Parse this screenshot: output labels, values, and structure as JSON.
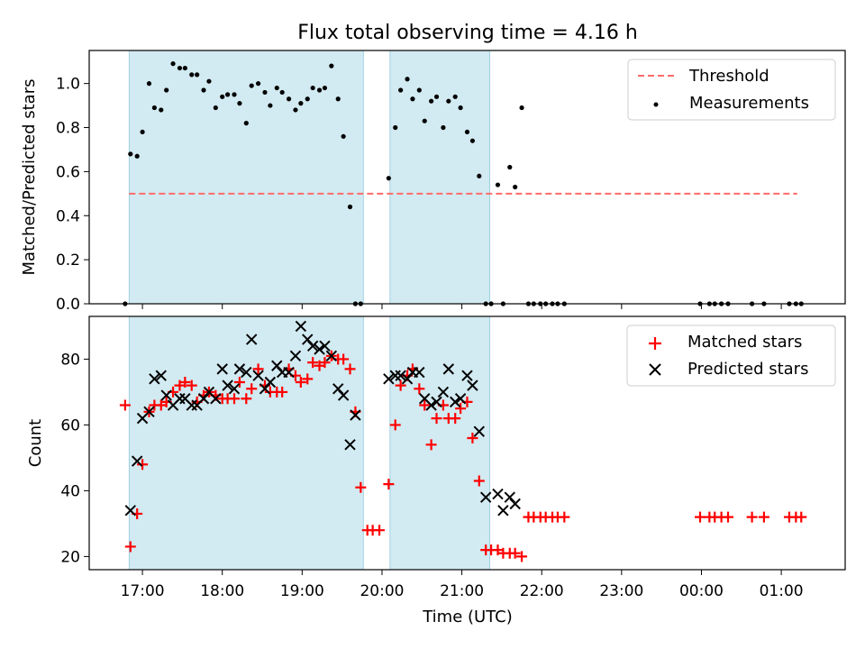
{
  "figure": {
    "title": "Flux total observing time = 4.16 h",
    "xlabel": "Time (UTC)"
  },
  "x_ticks": [
    "17:00",
    "18:00",
    "19:00",
    "20:00",
    "21:00",
    "22:00",
    "23:00",
    "00:00",
    "01:00"
  ],
  "colors": {
    "shade": "#add8e6",
    "threshold": "#ff6b6b",
    "matched": "#ff0000",
    "predicted": "#000000",
    "measurement": "#000000"
  },
  "chart_data": [
    {
      "type": "scatter",
      "ylabel": "Matched/Predicted stars",
      "xlim": [
        "16:20",
        "01:48"
      ],
      "ylim": [
        0,
        1.15
      ],
      "y_ticks": [
        "0.0",
        "0.2",
        "0.4",
        "0.6",
        "0.8",
        "1.0"
      ],
      "legend_position": "top-right",
      "shaded_intervals": [
        [
          "16:50",
          "19:46"
        ],
        [
          "20:06",
          "21:21"
        ]
      ],
      "threshold": {
        "name": "Threshold",
        "value": 0.5,
        "x_range": [
          "16:50",
          "01:12"
        ]
      },
      "series": [
        {
          "name": "Measurements",
          "points": [
            [
              "16:47",
              0.0
            ],
            [
              "16:51",
              0.68
            ],
            [
              "16:56",
              0.67
            ],
            [
              "17:00",
              0.78
            ],
            [
              "17:05",
              1.0
            ],
            [
              "17:09",
              0.89
            ],
            [
              "17:14",
              0.88
            ],
            [
              "17:18",
              0.97
            ],
            [
              "17:23",
              1.09
            ],
            [
              "17:28",
              1.07
            ],
            [
              "17:32",
              1.07
            ],
            [
              "17:37",
              1.04
            ],
            [
              "17:41",
              1.04
            ],
            [
              "17:46",
              0.97
            ],
            [
              "17:50",
              1.01
            ],
            [
              "17:55",
              0.89
            ],
            [
              "18:00",
              0.94
            ],
            [
              "18:04",
              0.95
            ],
            [
              "18:09",
              0.95
            ],
            [
              "18:13",
              0.91
            ],
            [
              "18:18",
              0.82
            ],
            [
              "18:22",
              0.99
            ],
            [
              "18:27",
              1.0
            ],
            [
              "18:32",
              0.96
            ],
            [
              "18:36",
              0.9
            ],
            [
              "18:41",
              0.98
            ],
            [
              "18:45",
              0.96
            ],
            [
              "18:50",
              0.93
            ],
            [
              "18:55",
              0.88
            ],
            [
              "18:59",
              0.91
            ],
            [
              "19:04",
              0.93
            ],
            [
              "19:08",
              0.98
            ],
            [
              "19:13",
              0.97
            ],
            [
              "19:17",
              0.98
            ],
            [
              "19:22",
              1.08
            ],
            [
              "19:27",
              0.93
            ],
            [
              "19:31",
              0.76
            ],
            [
              "19:36",
              0.44
            ],
            [
              "19:40",
              0.0
            ],
            [
              "19:44",
              0.0
            ],
            [
              "20:05",
              0.57
            ],
            [
              "20:10",
              0.8
            ],
            [
              "20:14",
              0.97
            ],
            [
              "20:19",
              1.02
            ],
            [
              "20:23",
              0.93
            ],
            [
              "20:28",
              0.97
            ],
            [
              "20:32",
              0.83
            ],
            [
              "20:37",
              0.92
            ],
            [
              "20:41",
              0.94
            ],
            [
              "20:46",
              0.8
            ],
            [
              "20:50",
              0.92
            ],
            [
              "20:55",
              0.94
            ],
            [
              "20:59",
              0.89
            ],
            [
              "21:04",
              0.78
            ],
            [
              "21:08",
              0.74
            ],
            [
              "21:13",
              0.58
            ],
            [
              "21:18",
              0.0
            ],
            [
              "21:22",
              0.0
            ],
            [
              "21:27",
              0.54
            ],
            [
              "21:31",
              0.0
            ],
            [
              "21:36",
              0.62
            ],
            [
              "21:40",
              0.53
            ],
            [
              "21:45",
              0.89
            ],
            [
              "21:50",
              0.0
            ],
            [
              "21:54",
              0.0
            ],
            [
              "21:59",
              0.0
            ],
            [
              "22:03",
              0.0
            ],
            [
              "22:08",
              0.0
            ],
            [
              "22:12",
              0.0
            ],
            [
              "22:17",
              0.0
            ],
            [
              "23:59",
              0.0
            ],
            [
              "00:06",
              0.0
            ],
            [
              "00:10",
              0.0
            ],
            [
              "00:15",
              0.0
            ],
            [
              "00:20",
              0.0
            ],
            [
              "00:38",
              0.0
            ],
            [
              "00:47",
              0.0
            ],
            [
              "01:06",
              0.0
            ],
            [
              "01:11",
              0.0
            ],
            [
              "01:15",
              0.0
            ]
          ]
        }
      ]
    },
    {
      "type": "scatter",
      "ylabel": "Count",
      "xlim": [
        "16:20",
        "01:48"
      ],
      "ylim": [
        16,
        93
      ],
      "y_ticks": [
        "20",
        "40",
        "60",
        "80"
      ],
      "legend_position": "top-right",
      "shaded_intervals": [
        [
          "16:50",
          "19:46"
        ],
        [
          "20:06",
          "21:21"
        ]
      ],
      "series": [
        {
          "name": "Matched stars",
          "marker": "+",
          "points": [
            [
              "16:47",
              66
            ],
            [
              "16:51",
              23
            ],
            [
              "16:56",
              33
            ],
            [
              "17:00",
              48
            ],
            [
              "17:05",
              64
            ],
            [
              "17:09",
              66
            ],
            [
              "17:14",
              66
            ],
            [
              "17:18",
              67
            ],
            [
              "17:23",
              70
            ],
            [
              "17:28",
              72
            ],
            [
              "17:32",
              73
            ],
            [
              "17:37",
              72
            ],
            [
              "17:41",
              67
            ],
            [
              "17:46",
              69
            ],
            [
              "17:50",
              70
            ],
            [
              "17:55",
              69
            ],
            [
              "18:00",
              68
            ],
            [
              "18:04",
              68
            ],
            [
              "18:09",
              68
            ],
            [
              "18:13",
              73
            ],
            [
              "18:18",
              68
            ],
            [
              "18:22",
              71
            ],
            [
              "18:27",
              77
            ],
            [
              "18:32",
              72
            ],
            [
              "18:36",
              70
            ],
            [
              "18:41",
              70
            ],
            [
              "18:45",
              70
            ],
            [
              "18:50",
              77
            ],
            [
              "18:55",
              75
            ],
            [
              "18:59",
              73
            ],
            [
              "19:04",
              74
            ],
            [
              "19:08",
              79
            ],
            [
              "19:13",
              78
            ],
            [
              "19:17",
              79
            ],
            [
              "19:22",
              81
            ],
            [
              "19:27",
              80
            ],
            [
              "19:31",
              80
            ],
            [
              "19:36",
              77
            ],
            [
              "19:40",
              64
            ],
            [
              "19:44",
              41
            ],
            [
              "19:49",
              28
            ],
            [
              "19:53",
              28
            ],
            [
              "19:58",
              28
            ],
            [
              "20:05",
              42
            ],
            [
              "20:10",
              60
            ],
            [
              "20:14",
              72
            ],
            [
              "20:19",
              75
            ],
            [
              "20:23",
              77
            ],
            [
              "20:28",
              71
            ],
            [
              "20:32",
              66
            ],
            [
              "20:37",
              54
            ],
            [
              "20:41",
              62
            ],
            [
              "20:46",
              66
            ],
            [
              "20:50",
              62
            ],
            [
              "20:55",
              62
            ],
            [
              "20:59",
              65
            ],
            [
              "21:04",
              67
            ],
            [
              "21:08",
              56
            ],
            [
              "21:13",
              43
            ],
            [
              "21:18",
              22
            ],
            [
              "21:22",
              22
            ],
            [
              "21:27",
              22
            ],
            [
              "21:31",
              21
            ],
            [
              "21:36",
              21
            ],
            [
              "21:40",
              21
            ],
            [
              "21:45",
              20
            ],
            [
              "21:50",
              32
            ],
            [
              "21:54",
              32
            ],
            [
              "21:59",
              32
            ],
            [
              "22:03",
              32
            ],
            [
              "22:08",
              32
            ],
            [
              "22:12",
              32
            ],
            [
              "22:17",
              32
            ],
            [
              "23:59",
              32
            ],
            [
              "00:06",
              32
            ],
            [
              "00:10",
              32
            ],
            [
              "00:15",
              32
            ],
            [
              "00:20",
              32
            ],
            [
              "00:38",
              32
            ],
            [
              "00:47",
              32
            ],
            [
              "01:06",
              32
            ],
            [
              "01:11",
              32
            ],
            [
              "01:15",
              32
            ]
          ]
        },
        {
          "name": "Predicted stars",
          "marker": "x",
          "points": [
            [
              "16:51",
              34
            ],
            [
              "16:56",
              49
            ],
            [
              "17:00",
              62
            ],
            [
              "17:05",
              64
            ],
            [
              "17:09",
              74
            ],
            [
              "17:14",
              75
            ],
            [
              "17:18",
              69
            ],
            [
              "17:23",
              66
            ],
            [
              "17:28",
              68
            ],
            [
              "17:32",
              68
            ],
            [
              "17:37",
              66
            ],
            [
              "17:41",
              66
            ],
            [
              "17:46",
              68
            ],
            [
              "17:50",
              70
            ],
            [
              "17:55",
              68
            ],
            [
              "18:00",
              77
            ],
            [
              "18:04",
              72
            ],
            [
              "18:09",
              71
            ],
            [
              "18:13",
              77
            ],
            [
              "18:18",
              76
            ],
            [
              "18:22",
              86
            ],
            [
              "18:27",
              75
            ],
            [
              "18:32",
              71
            ],
            [
              "18:36",
              73
            ],
            [
              "18:41",
              78
            ],
            [
              "18:45",
              76
            ],
            [
              "18:50",
              76
            ],
            [
              "18:55",
              81
            ],
            [
              "18:59",
              90
            ],
            [
              "19:04",
              86
            ],
            [
              "19:08",
              84
            ],
            [
              "19:13",
              83
            ],
            [
              "19:17",
              84
            ],
            [
              "19:22",
              81
            ],
            [
              "19:27",
              71
            ],
            [
              "19:31",
              69
            ],
            [
              "19:36",
              54
            ],
            [
              "19:40",
              63
            ],
            [
              "20:05",
              74
            ],
            [
              "20:10",
              75
            ],
            [
              "20:14",
              75
            ],
            [
              "20:19",
              74
            ],
            [
              "20:23",
              76
            ],
            [
              "20:28",
              76
            ],
            [
              "20:32",
              68
            ],
            [
              "20:37",
              66
            ],
            [
              "20:41",
              67
            ],
            [
              "20:46",
              70
            ],
            [
              "20:50",
              77
            ],
            [
              "20:55",
              67
            ],
            [
              "20:59",
              68
            ],
            [
              "21:04",
              75
            ],
            [
              "21:08",
              72
            ],
            [
              "21:13",
              58
            ],
            [
              "21:18",
              38
            ],
            [
              "21:27",
              39
            ],
            [
              "21:31",
              34
            ],
            [
              "21:36",
              38
            ],
            [
              "21:40",
              36
            ]
          ]
        }
      ]
    }
  ]
}
